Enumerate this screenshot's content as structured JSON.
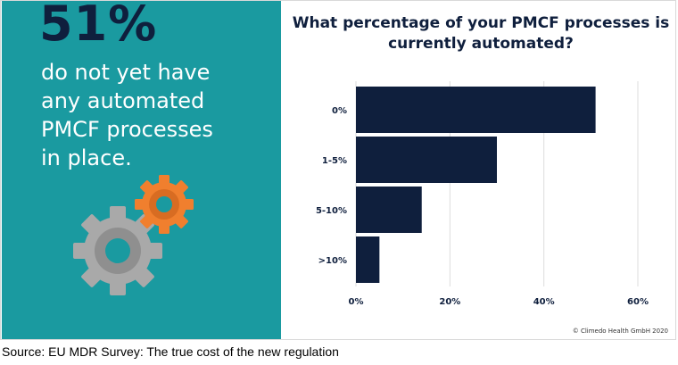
{
  "left_panel": {
    "stat": "51%",
    "line1_text": "do not yet have",
    "line2_text": "any automated",
    "line3_text": "PMCF processes",
    "line4_text": "in place.",
    "gear_icons": [
      "gear-small-icon",
      "gear-large-icon"
    ],
    "colors": {
      "background": "#1a9aa0",
      "stat": "#0f1f3d",
      "text": "#ffffff",
      "gear_small": "#f07f2e",
      "gear_large": "#a9a9a9"
    }
  },
  "chart_data": {
    "type": "bar",
    "orientation": "horizontal",
    "title": "What percentage of your PMCF processes is currently automated?",
    "categories": [
      "0%",
      "1-5%",
      "5-10%",
      ">10%"
    ],
    "values": [
      51,
      30,
      14,
      5
    ],
    "x_ticks": [
      "0%",
      "20%",
      "40%",
      "60%"
    ],
    "xlim": [
      0,
      60
    ],
    "grid": true,
    "bar_color": "#0f1f3d"
  },
  "copyright": "© Climedo Health GmbH 2020",
  "source": "Source: EU MDR Survey: The true cost of the new regulation"
}
